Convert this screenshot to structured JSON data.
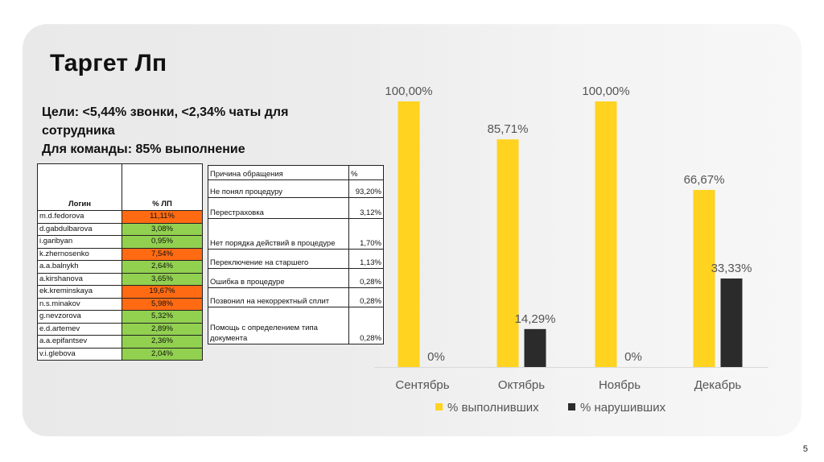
{
  "slide": {
    "title": "Таргет Лп",
    "goals": [
      "Цели: <5,44% звонки, <2,34% чаты для",
      "сотрудника",
      "Для команды: 85% выполнение"
    ],
    "page_number": "5"
  },
  "login_table": {
    "headers": [
      "Логин",
      "% ЛП"
    ],
    "rows": [
      {
        "login": "m.d.fedorova",
        "value": "11,11%",
        "status": "orange"
      },
      {
        "login": "d.gabdulbarova",
        "value": "3,08%",
        "status": "green"
      },
      {
        "login": "i.garibyan",
        "value": "0,95%",
        "status": "green"
      },
      {
        "login": "k.zhernosenko",
        "value": "7,54%",
        "status": "orange"
      },
      {
        "login": "a.a.balnykh",
        "value": "2,64%",
        "status": "green"
      },
      {
        "login": "a.kirshanova",
        "value": "3,65%",
        "status": "green"
      },
      {
        "login": "ek.kreminskaya",
        "value": "19,67%",
        "status": "orange"
      },
      {
        "login": "n.s.minakov",
        "value": "5,98%",
        "status": "orange"
      },
      {
        "login": "g.nevzorova",
        "value": "5,32%",
        "status": "green"
      },
      {
        "login": "e.d.artemev",
        "value": "2,89%",
        "status": "green"
      },
      {
        "login": "a.a.epifantsev",
        "value": "2,36%",
        "status": "green"
      },
      {
        "login": "v.i.glebova",
        "value": "2,04%",
        "status": "green"
      }
    ],
    "colors": {
      "orange": "#ff6a13",
      "green": "#92d050"
    }
  },
  "reason_table": {
    "headers": [
      "Причина обращения",
      "%"
    ],
    "rows": [
      {
        "reason": "Не понял процедуру",
        "value": "93,20%"
      },
      {
        "reason": "Перестраховка",
        "value": "3,12%"
      },
      {
        "reason": "Нет порядка действий в процедуре",
        "value": "1,70%"
      },
      {
        "reason": "Переключение на старшего",
        "value": "1,13%"
      },
      {
        "reason": "Ошибка в процедуре",
        "value": "0,28%"
      },
      {
        "reason": "Позвонил на некорректный сплит",
        "value": "0,28%"
      },
      {
        "reason": "Помощь с определением типа документа",
        "value": "0,28%"
      }
    ]
  },
  "chart_data": {
    "type": "bar",
    "categories": [
      "Сентябрь",
      "Октябрь",
      "Ноябрь",
      "Декабрь"
    ],
    "series": [
      {
        "name": "% выполнивших",
        "values": [
          100.0,
          85.71,
          100.0,
          66.67
        ],
        "labels": [
          "100,00%",
          "85,71%",
          "100,00%",
          "66,67%"
        ],
        "color": "#ffd320"
      },
      {
        "name": "% нарушивших",
        "values": [
          0,
          14.29,
          0,
          33.33
        ],
        "labels": [
          "0%",
          "14,29%",
          "0%",
          "33,33%"
        ],
        "color": "#2b2b2b"
      }
    ],
    "ylim": [
      0,
      100
    ],
    "grid": false,
    "legend": "bottom",
    "title": "",
    "xlabel": "",
    "ylabel": ""
  }
}
